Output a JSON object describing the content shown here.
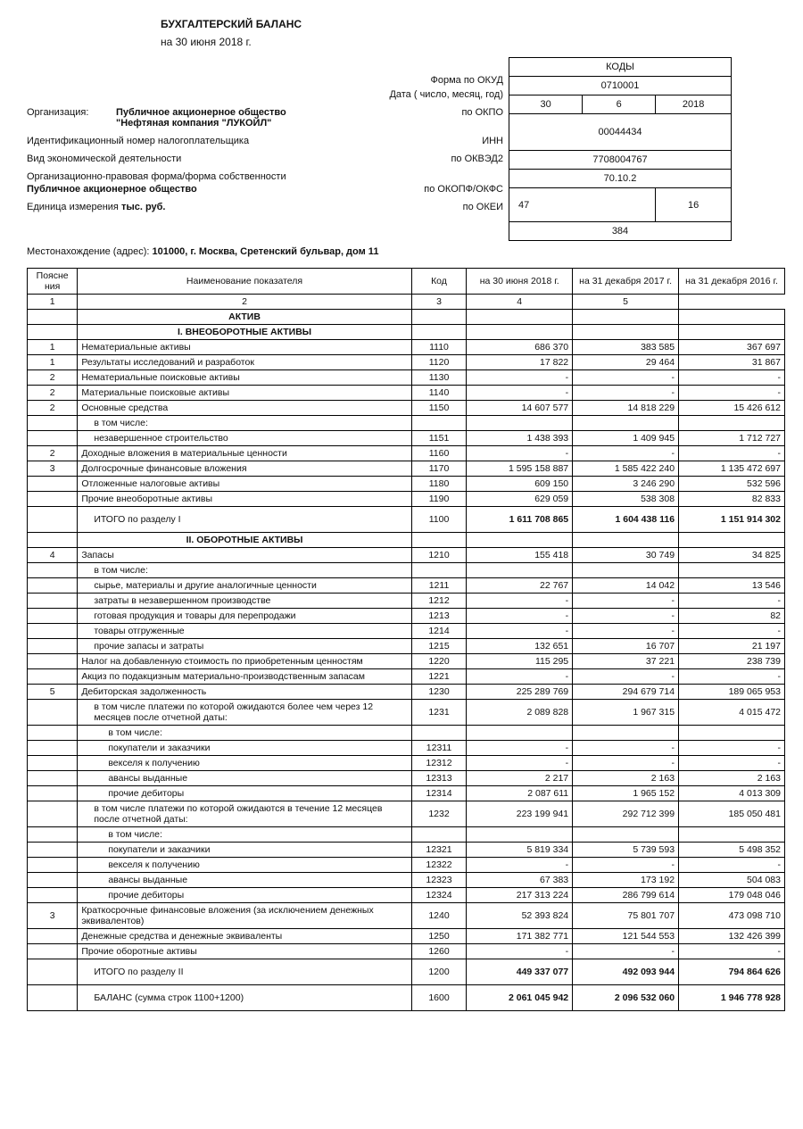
{
  "header": {
    "title": "БУХГАЛТЕРСКИЙ БАЛАНС",
    "subtitle": "на 30 июня 2018 г."
  },
  "info": {
    "form_label": "Форма по ОКУД",
    "date_label": "Дата ( число, месяц, год)",
    "org_label": "Организация:",
    "org_value1": "Публичное акционерное общество",
    "org_value2": "\"Нефтяная компания \"ЛУКОЙЛ\"",
    "okpo_label": "по ОКПО",
    "inn_label_full": "Идентификационный номер налогоплательщика",
    "inn_label": "ИНН",
    "okved_label_full": "Вид экономической деятельности",
    "okved_label": "по ОКВЭД2",
    "okopf_label_full": "Организационно-правовая форма/форма собственности",
    "okopf_value": "Публичное акционерное общество",
    "okopf_label": "по ОКОПФ/ОКФС",
    "unit_label_full": "Единица измерения",
    "unit_value": "тыс. руб.",
    "okei_label": "по ОКЕИ",
    "address_label": "Местонахождение (адрес):",
    "address_value": "101000, г. Москва, Сретенский бульвар, дом 11"
  },
  "codes": {
    "kody": "КОДЫ",
    "okud": "0710001",
    "day": "30",
    "month": "6",
    "year": "2018",
    "okpo": "00044434",
    "inn": "7708004767",
    "okved": "70.10.2",
    "okopf": "47",
    "okfs": "16",
    "okei": "384"
  },
  "table": {
    "head": {
      "note": "Поясне ния",
      "name": "Наименование показателя",
      "code": "Код",
      "c3": "на 30 июня 2018 г.",
      "c4": "на 31 декабря 2017 г.",
      "c5": "на 31 декабря 2016 г.",
      "n1": "1",
      "n2": "2",
      "n3": "3",
      "n4": "4",
      "n5": "5"
    },
    "rows": [
      {
        "type": "section",
        "name": "АКТИВ"
      },
      {
        "type": "section",
        "name": "I. ВНЕОБОРОТНЫЕ АКТИВЫ"
      },
      {
        "note": "1",
        "name": "Нематериальные активы",
        "code": "1110",
        "v3": "686 370",
        "v4": "383 585",
        "v5": "367 697"
      },
      {
        "note": "1",
        "name": "Результаты исследований и разработок",
        "code": "1120",
        "v3": "17 822",
        "v4": "29 464",
        "v5": "31 867"
      },
      {
        "note": "2",
        "name": "Нематериальные поисковые активы",
        "code": "1130",
        "v3": "-",
        "v4": "-",
        "v5": "-"
      },
      {
        "note": "2",
        "name": "Материальные поисковые активы",
        "code": "1140",
        "v3": "-",
        "v4": "-",
        "v5": "-"
      },
      {
        "note": "2",
        "name": "Основные средства",
        "code": "1150",
        "v3": "14 607 577",
        "v4": "14 818 229",
        "v5": "15 426 612"
      },
      {
        "indent": 1,
        "name": "в том числе:"
      },
      {
        "indent": 1,
        "name": "незавершенное строительство",
        "code": "1151",
        "v3": "1 438 393",
        "v4": "1 409 945",
        "v5": "1 712 727"
      },
      {
        "note": "2",
        "name": "Доходные вложения в материальные ценности",
        "code": "1160",
        "v3": "-",
        "v4": "-",
        "v5": "-"
      },
      {
        "note": "3",
        "name": "Долгосрочные финансовые вложения",
        "code": "1170",
        "v3": "1 595 158 887",
        "v4": "1 585 422 240",
        "v5": "1 135 472 697"
      },
      {
        "name": "Отложенные налоговые активы",
        "code": "1180",
        "v3": "609 150",
        "v4": "3 246 290",
        "v5": "532 596"
      },
      {
        "name": "Прочие внеоборотные активы",
        "code": "1190",
        "v3": "629 059",
        "v4": "538 308",
        "v5": "82 833"
      },
      {
        "type": "total",
        "name": "ИТОГО по разделу I",
        "code": "1100",
        "v3": "1 611 708 865",
        "v4": "1 604 438 116",
        "v5": "1 151 914 302"
      },
      {
        "type": "section",
        "name": "II. ОБОРОТНЫЕ АКТИВЫ"
      },
      {
        "note": "4",
        "name": "Запасы",
        "code": "1210",
        "v3": "155 418",
        "v4": "30 749",
        "v5": "34 825"
      },
      {
        "indent": 1,
        "name": "в том числе:"
      },
      {
        "indent": 1,
        "name": "сырье, материалы и другие аналогичные ценности",
        "code": "1211",
        "v3": "22 767",
        "v4": "14 042",
        "v5": "13 546"
      },
      {
        "indent": 1,
        "name": "затраты в незавершенном производстве",
        "code": "1212",
        "v3": "-",
        "v4": "-",
        "v5": "-"
      },
      {
        "indent": 1,
        "name": "готовая продукция и товары для перепродажи",
        "code": "1213",
        "v3": "-",
        "v4": "-",
        "v5": "82"
      },
      {
        "indent": 1,
        "name": "товары отгруженные",
        "code": "1214",
        "v3": "-",
        "v4": "-",
        "v5": "-"
      },
      {
        "indent": 1,
        "name": "прочие запасы и затраты",
        "code": "1215",
        "v3": "132 651",
        "v4": "16 707",
        "v5": "21 197"
      },
      {
        "name": "Налог на добавленную стоимость по приобретенным ценностям",
        "code": "1220",
        "v3": "115 295",
        "v4": "37 221",
        "v5": "238 739"
      },
      {
        "name": "Акциз по подакцизным материально-производственным запасам",
        "code": "1221",
        "v3": "-",
        "v4": "-",
        "v5": "-"
      },
      {
        "note": "5",
        "name": "Дебиторская задолженность",
        "code": "1230",
        "v3": "225 289 769",
        "v4": "294 679 714",
        "v5": "189 065 953"
      },
      {
        "indent": 1,
        "name": "в том числе платежи по которой ожидаются более чем через 12 месяцев после отчетной даты:",
        "code": "1231",
        "v3": "2 089 828",
        "v4": "1 967 315",
        "v5": "4 015 472"
      },
      {
        "indent": 2,
        "name": "в том числе:"
      },
      {
        "indent": 2,
        "name": "покупатели и заказчики",
        "code": "12311",
        "v3": "-",
        "v4": "-",
        "v5": "-"
      },
      {
        "indent": 2,
        "name": "векселя к получению",
        "code": "12312",
        "v3": "-",
        "v4": "-",
        "v5": "-"
      },
      {
        "indent": 2,
        "name": "авансы выданные",
        "code": "12313",
        "v3": "2 217",
        "v4": "2 163",
        "v5": "2 163"
      },
      {
        "indent": 2,
        "name": "прочие дебиторы",
        "code": "12314",
        "v3": "2 087 611",
        "v4": "1 965 152",
        "v5": "4 013 309"
      },
      {
        "indent": 1,
        "name": "в том числе платежи по которой ожидаются в течение 12 месяцев после отчетной даты:",
        "code": "1232",
        "v3": "223 199 941",
        "v4": "292 712 399",
        "v5": "185 050 481"
      },
      {
        "indent": 2,
        "name": "в том числе:"
      },
      {
        "indent": 2,
        "name": "покупатели и заказчики",
        "code": "12321",
        "v3": "5 819 334",
        "v4": "5 739 593",
        "v5": "5 498 352"
      },
      {
        "indent": 2,
        "name": "векселя к получению",
        "code": "12322",
        "v3": "-",
        "v4": "-",
        "v5": "-"
      },
      {
        "indent": 2,
        "name": "авансы выданные",
        "code": "12323",
        "v3": "67 383",
        "v4": "173 192",
        "v5": "504 083"
      },
      {
        "indent": 2,
        "name": "прочие дебиторы",
        "code": "12324",
        "v3": "217 313 224",
        "v4": "286 799 614",
        "v5": "179 048 046"
      },
      {
        "note": "3",
        "name": "Краткосрочные финансовые вложения (за исключением денежных эквивалентов)",
        "code": "1240",
        "v3": "52 393 824",
        "v4": "75 801 707",
        "v5": "473 098 710"
      },
      {
        "name": "Денежные средства и денежные эквиваленты",
        "code": "1250",
        "v3": "171 382 771",
        "v4": "121 544 553",
        "v5": "132 426 399"
      },
      {
        "name": "Прочие оборотные активы",
        "code": "1260",
        "v3": "-",
        "v4": "-",
        "v5": "-"
      },
      {
        "type": "total",
        "name": "ИТОГО по разделу II",
        "code": "1200",
        "v3": "449 337 077",
        "v4": "492 093 944",
        "v5": "794 864 626"
      },
      {
        "type": "total",
        "name": "БАЛАНС  (сумма строк 1100+1200)",
        "code": "1600",
        "v3": "2 061 045 942",
        "v4": "2 096 532 060",
        "v5": "1 946 778 928"
      }
    ]
  }
}
